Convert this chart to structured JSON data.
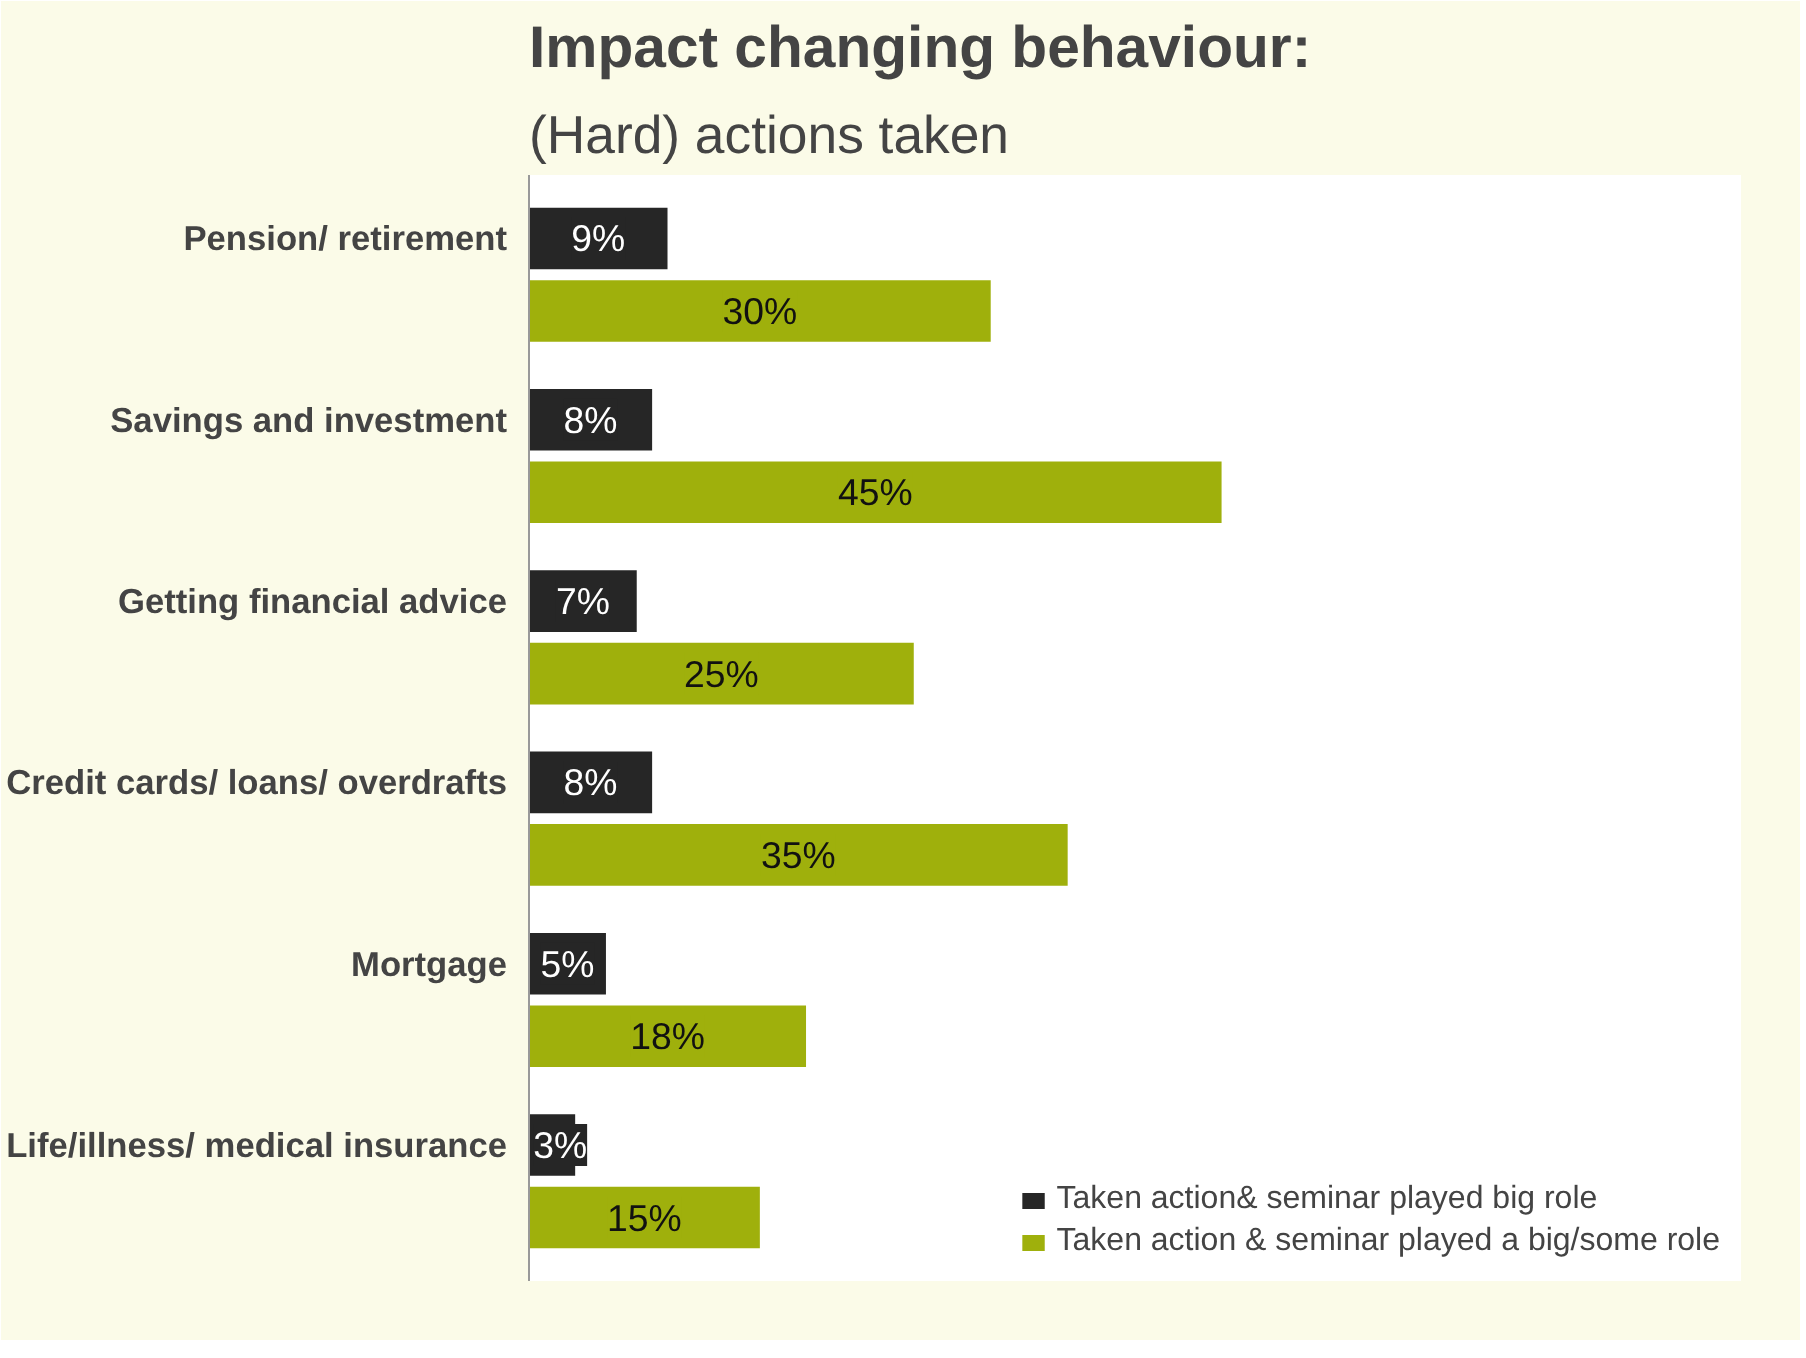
{
  "chart_data": {
    "type": "bar",
    "orientation": "horizontal",
    "title": "Impact changing behaviour:",
    "subtitle": "(Hard) actions taken",
    "categories": [
      "Pension/ retirement",
      "Savings and investment",
      "Getting financial advice",
      "Credit cards/ loans/ overdrafts",
      "Mortgage",
      "Life/illness/ medical insurance"
    ],
    "series": [
      {
        "name": "Taken action& seminar played big role",
        "color": "#262626",
        "values": [
          9,
          8,
          7,
          8,
          5,
          3
        ],
        "value_labels": [
          "9%",
          "8%",
          "7%",
          "8%",
          "5%",
          "3%"
        ]
      },
      {
        "name": "Taken action & seminar played a big/some role",
        "color": "#9fb00c",
        "values": [
          30,
          45,
          25,
          35,
          18,
          15
        ],
        "value_labels": [
          "30%",
          "45%",
          "25%",
          "35%",
          "18%",
          "15%"
        ]
      }
    ],
    "legend": "bottom right",
    "grid": false
  }
}
